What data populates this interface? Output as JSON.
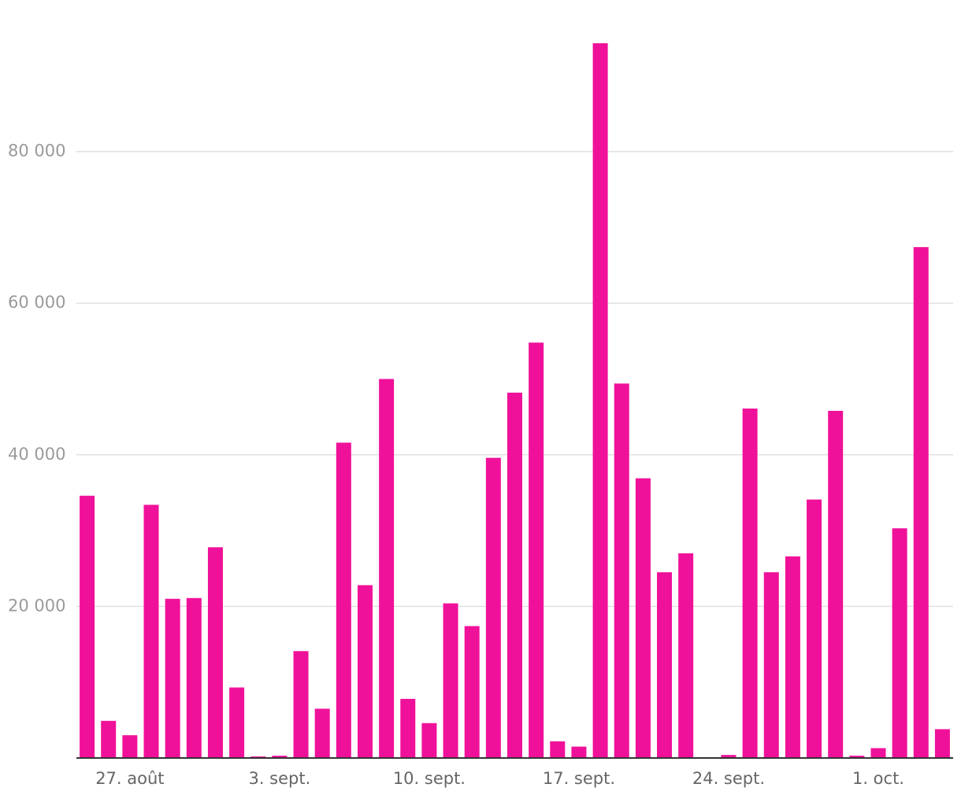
{
  "chart_data": {
    "type": "bar",
    "color": "#f0119a",
    "grid": true,
    "categories": [
      null,
      null,
      "27. août",
      null,
      null,
      null,
      null,
      null,
      null,
      "3. sept.",
      null,
      null,
      null,
      null,
      null,
      null,
      "10. sept.",
      null,
      null,
      null,
      null,
      null,
      null,
      "17. sept.",
      null,
      null,
      null,
      null,
      null,
      null,
      "24. sept.",
      null,
      null,
      null,
      null,
      null,
      null,
      "1. oct.",
      null,
      null,
      null
    ],
    "values": [
      34600,
      4900,
      3000,
      33400,
      21000,
      21100,
      27800,
      9300,
      200,
      300,
      14100,
      6500,
      41600,
      22800,
      50000,
      7800,
      4600,
      20400,
      17400,
      39600,
      48200,
      54800,
      2200,
      1500,
      94300,
      49400,
      36900,
      24500,
      27000,
      100,
      400,
      46100,
      24500,
      26600,
      34100,
      45800,
      300,
      1300,
      30300,
      67400,
      3800
    ],
    "ylim": [
      0,
      100000
    ],
    "yticks": [
      {
        "value": 20000,
        "label": "20 000"
      },
      {
        "value": 40000,
        "label": "40 000"
      },
      {
        "value": 60000,
        "label": "60 000"
      },
      {
        "value": 80000,
        "label": "80 000"
      }
    ]
  }
}
